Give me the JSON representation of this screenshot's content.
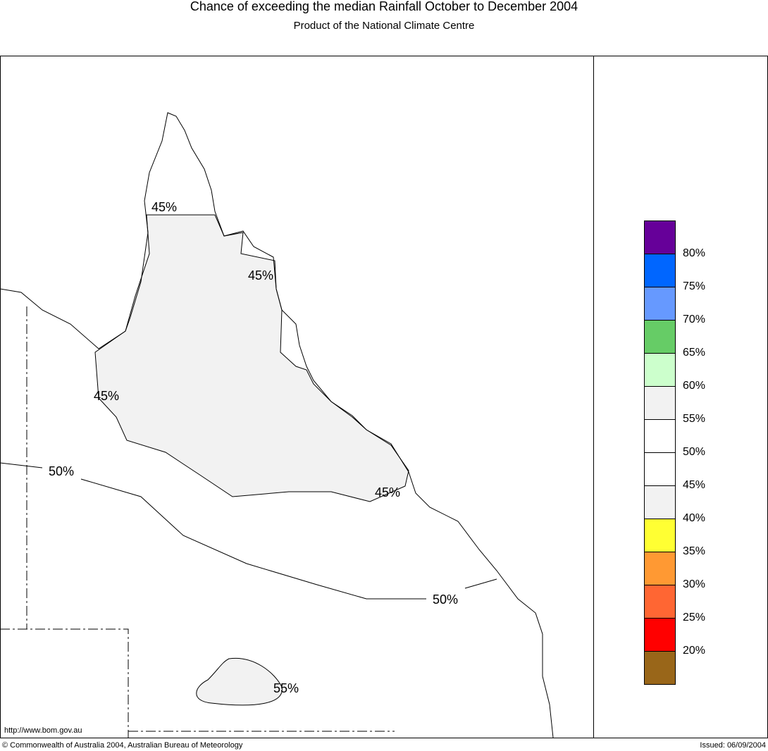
{
  "header": {
    "title": "Chance of exceeding the median Rainfall October to December 2004",
    "subtitle": "Product of the National Climate Centre"
  },
  "map": {
    "contour_labels": [
      "45%",
      "45%",
      "45%",
      "45%",
      "50%",
      "50%",
      "55%"
    ],
    "url": "http://www.bom.gov.au"
  },
  "legend": {
    "labels": [
      "80%",
      "75%",
      "70%",
      "65%",
      "60%",
      "55%",
      "50%",
      "45%",
      "40%",
      "35%",
      "30%",
      "25%",
      "20%"
    ],
    "colors": [
      "#660099",
      "#0066ff",
      "#6699ff",
      "#66cc66",
      "#ccffcc",
      "#f2f2f2",
      "#ffffff",
      "#ffffff",
      "#f2f2f2",
      "#ffff33",
      "#ff9933",
      "#ff6633",
      "#ff0000",
      "#996619"
    ]
  },
  "footer": {
    "copyright": "© Commonwealth of Australia 2004, Australian Bureau of Meteorology",
    "issued": "Issued: 06/09/2004"
  }
}
